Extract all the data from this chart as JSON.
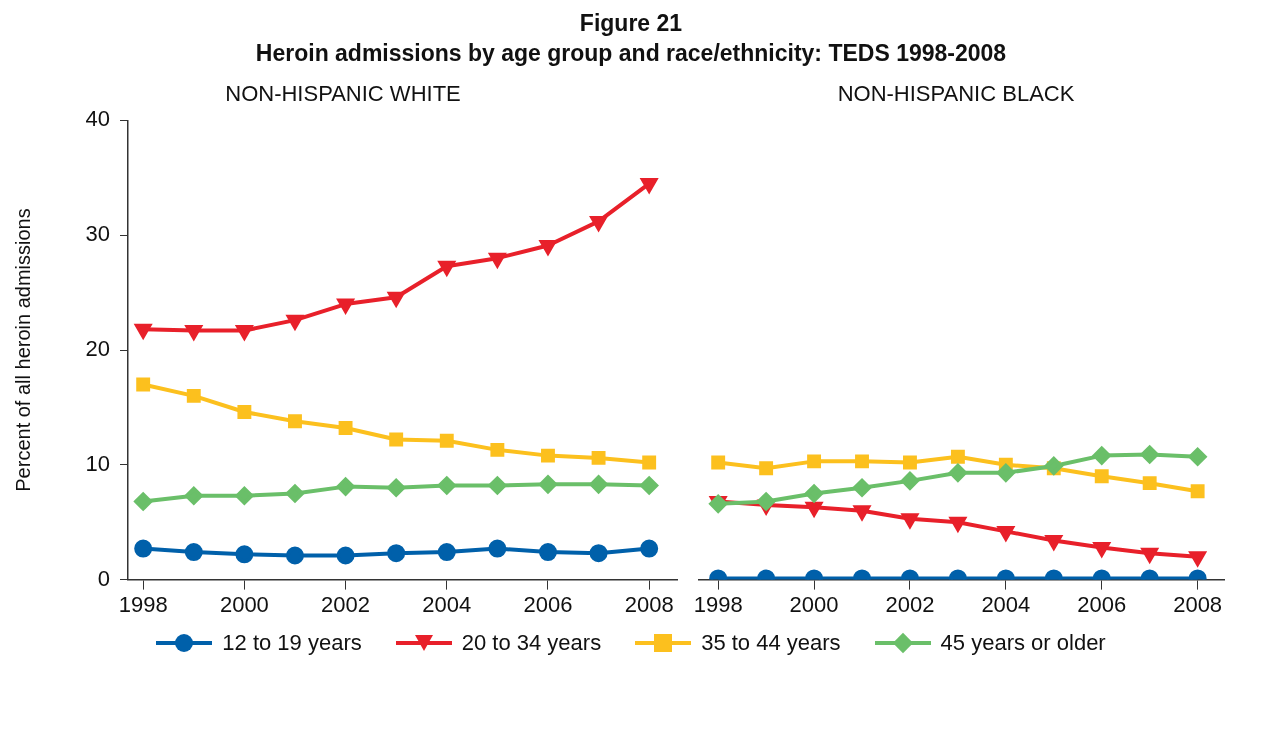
{
  "chart_data": [
    {
      "type": "line",
      "title": "NON-HISPANIC WHITE",
      "annotations": [
        "Figure 21",
        "Heroin admissions by age group and race/ethnicity: TEDS 1998-2008"
      ],
      "ylabel": "Percent of all heroin admissions",
      "x": [
        1998,
        1999,
        2000,
        2001,
        2002,
        2003,
        2004,
        2005,
        2006,
        2007,
        2008
      ],
      "xlim": [
        1997.7,
        2008.55
      ],
      "xticks": [
        1998,
        2000,
        2002,
        2004,
        2006,
        2008
      ],
      "ylim": [
        0,
        40
      ],
      "yticks": [
        0,
        10,
        20,
        30,
        40
      ],
      "grid": false,
      "legend": "bottom",
      "line_style": "solid",
      "series": [
        {
          "name": "12 to 19 years",
          "color": "#0060aa",
          "marker": "circle",
          "values": [
            2.7,
            2.4,
            2.2,
            2.1,
            2.1,
            2.3,
            2.4,
            2.7,
            2.4,
            2.3,
            2.7
          ]
        },
        {
          "name": "20 to 34 years",
          "color": "#e8202a",
          "marker": "triangle",
          "values": [
            21.8,
            21.7,
            21.7,
            22.6,
            24.0,
            24.6,
            27.3,
            28.0,
            29.1,
            31.2,
            34.5
          ]
        },
        {
          "name": "35 to 44 years",
          "color": "#fcc01e",
          "marker": "square",
          "values": [
            17.0,
            16.0,
            14.6,
            13.8,
            13.2,
            12.2,
            12.1,
            11.3,
            10.8,
            10.6,
            10.2
          ]
        },
        {
          "name": "45 years or older",
          "color": "#6abf69",
          "marker": "diamond",
          "values": [
            6.8,
            7.3,
            7.3,
            7.5,
            8.1,
            8.0,
            8.2,
            8.2,
            8.3,
            8.3,
            8.2
          ]
        }
      ]
    },
    {
      "type": "line",
      "title": "NON-HISPANIC BLACK",
      "x": [
        1998,
        1999,
        2000,
        2001,
        2002,
        2003,
        2004,
        2005,
        2006,
        2007,
        2008
      ],
      "xlim": [
        1997.6,
        2008.55
      ],
      "xticks": [
        1998,
        2000,
        2002,
        2004,
        2006,
        2008
      ],
      "ylim": [
        0,
        40
      ],
      "yticks": [
        0,
        10,
        20,
        30,
        40
      ],
      "tick_labels": "x",
      "grid": false,
      "line_style": "solid",
      "series": [
        {
          "color": "#0060aa",
          "marker": "circle",
          "values": [
            0.1,
            0.1,
            0.1,
            0.1,
            0.1,
            0.1,
            0.1,
            0.1,
            0.1,
            0.1,
            0.1
          ]
        },
        {
          "color": "#e8202a",
          "marker": "triangle",
          "values": [
            6.8,
            6.5,
            6.3,
            6.0,
            5.3,
            5.0,
            4.2,
            3.4,
            2.8,
            2.3,
            2.0
          ]
        },
        {
          "color": "#fcc01e",
          "marker": "square",
          "values": [
            10.2,
            9.7,
            10.3,
            10.3,
            10.2,
            10.7,
            10.0,
            9.7,
            9.0,
            8.4,
            7.7
          ]
        },
        {
          "color": "#6abf69",
          "marker": "diamond",
          "values": [
            6.6,
            6.8,
            7.5,
            8.0,
            8.6,
            9.3,
            9.3,
            9.9,
            10.8,
            10.9,
            10.7
          ]
        }
      ]
    }
  ]
}
